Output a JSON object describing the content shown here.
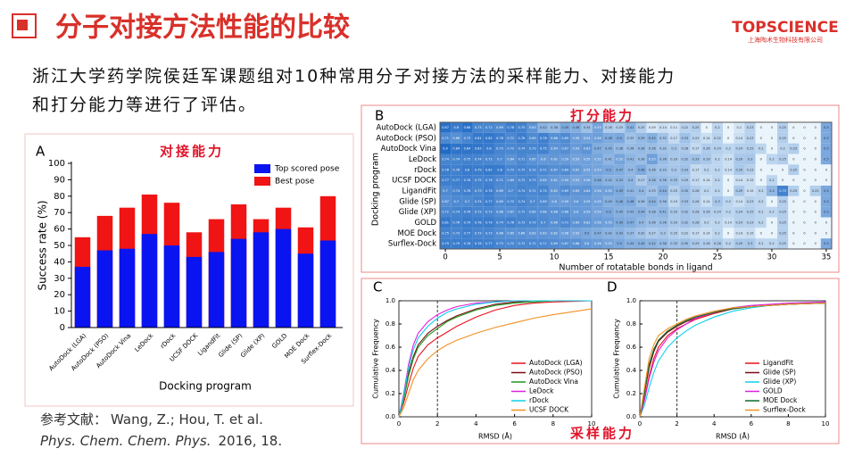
{
  "header": {
    "title": "分子对接方法性能的比较",
    "logo": "TOPSCIENCE",
    "logo_sub": "上海陶术生物科技有限公司"
  },
  "intro": [
    "浙江大学药学院侯廷军课题组对10种常用分子对接方法的采样能力、对接能力",
    "和打分能力等进行了评估。"
  ],
  "reference": {
    "prefix": "参考文献：",
    "authors": "Wang, Z.; Hou, T. et al.",
    "journal": "Phys. Chem. Chem. Phys.",
    "year": "2016, 18."
  },
  "chart_data": [
    {
      "type": "bar",
      "panel": "A",
      "title": "对接能力",
      "xlabel": "Docking program",
      "ylabel": "Success rate (%)",
      "categories": [
        "AutoDock (LGA)",
        "AutoDock (PSO)",
        "AutoDock Vina",
        "LeDock",
        "rDock",
        "UCSF DOCK",
        "LigandFit",
        "Glide (SP)",
        "Glide (XP)",
        "GOLD",
        "MOE Dock",
        "Surflex-Dock"
      ],
      "series": [
        {
          "name": "Top scored pose",
          "color": "#0a14f0",
          "values": [
            37,
            47,
            48,
            57,
            50,
            43,
            46,
            54,
            58,
            60,
            45,
            53
          ]
        },
        {
          "name": "Best pose",
          "color": "#f01414",
          "values": [
            55,
            68,
            73,
            81,
            76,
            58,
            66,
            75,
            66,
            73,
            61,
            80
          ]
        }
      ],
      "ylim": [
        0,
        100
      ],
      "yticks": [
        0,
        10,
        20,
        30,
        40,
        50,
        60,
        70,
        80,
        90,
        100
      ],
      "legend": "upper right"
    },
    {
      "type": "heatmap",
      "panel": "B",
      "title": "打分能力",
      "xlabel": "Number of rotatable bonds in ligand",
      "ylabel": "Docking program",
      "rows": [
        "AutoDock (LGA)",
        "AutoDock (PSO)",
        "AutoDock Vina",
        "LeDock",
        "rDock",
        "UCSF DOCK",
        "LigandFit",
        "Glide (SP)",
        "Glide (XP)",
        "GOLD",
        "MOE Dock",
        "Surflex-Dock"
      ],
      "x": [
        0,
        1,
        2,
        3,
        4,
        5,
        6,
        7,
        8,
        9,
        10,
        11,
        12,
        13,
        14,
        15,
        16,
        17,
        18,
        19,
        20,
        21,
        22,
        23,
        24,
        25,
        26,
        27,
        28,
        29,
        30,
        31,
        32,
        33,
        34,
        35
      ],
      "xlim": [
        -0.5,
        35.5
      ],
      "xticks": [
        0,
        5,
        10,
        15,
        20,
        25,
        30,
        35
      ],
      "colors": [
        "#eaf4fb",
        "#0b5cc0"
      ],
      "values": [
        [
          0.87,
          0.8,
          0.86,
          0.73,
          0.72,
          0.69,
          0.78,
          0.75,
          0.63,
          0.42,
          0.38,
          0.49,
          0.46,
          0.34,
          0.53,
          0.26,
          0.25,
          0.42,
          0.25,
          0.09,
          0.14,
          0.11,
          0.22,
          0.25,
          0,
          0.2,
          0,
          0.1,
          0.23,
          0,
          0,
          0.25,
          0,
          0,
          0,
          0.5
        ],
        [
          0.71,
          0.66,
          0.73,
          0.81,
          0.82,
          0.78,
          0.71,
          0.78,
          0.69,
          0.76,
          0.66,
          0.69,
          0.58,
          0.54,
          0.56,
          0.48,
          0.5,
          0.33,
          0.39,
          0.45,
          0.32,
          0.17,
          0.33,
          0.22,
          0.14,
          0.22,
          0,
          0.14,
          0.23,
          0,
          0,
          0.25,
          0,
          0,
          0,
          0.5
        ],
        [
          0.9,
          0.84,
          0.84,
          0.83,
          0.8,
          0.73,
          0.72,
          0.74,
          0.73,
          0.75,
          0.64,
          0.67,
          0.59,
          0.63,
          0.47,
          0.45,
          0.38,
          0.36,
          0.38,
          0.36,
          0.32,
          0.3,
          0.28,
          0.17,
          0.26,
          0.24,
          0.2,
          0.24,
          0.25,
          0.2,
          0,
          0.2,
          0.25,
          0,
          0,
          0.5
        ],
        [
          0.74,
          0.74,
          0.75,
          0.74,
          0.72,
          0.7,
          0.64,
          0.71,
          0.65,
          0.6,
          0.61,
          0.59,
          0.53,
          0.55,
          0.52,
          0.41,
          0.52,
          0.41,
          0.36,
          0.55,
          0.36,
          0.29,
          0.32,
          0.33,
          0.29,
          0.2,
          0.14,
          0.29,
          0.3,
          0,
          0.2,
          0.25,
          0,
          0,
          0,
          0.5
        ],
        [
          0.78,
          0.76,
          0.8,
          0.79,
          0.81,
          0.8,
          0.73,
          0.75,
          0.72,
          0.71,
          0.67,
          0.69,
          0.61,
          0.55,
          0.53,
          0.5,
          0.47,
          0.4,
          0.48,
          0.36,
          0.33,
          0.3,
          0.33,
          0.17,
          0.2,
          0.2,
          0.14,
          0.29,
          0.23,
          0,
          0,
          0,
          0.25,
          0,
          0,
          0
        ],
        [
          0.77,
          0.77,
          0.78,
          0.75,
          0.76,
          0.71,
          0.69,
          0.72,
          0.73,
          0.65,
          0.61,
          0.59,
          0.53,
          0.56,
          0.48,
          0.42,
          0.43,
          0.4,
          0.27,
          0.38,
          0.36,
          0.33,
          0.29,
          0.17,
          0.14,
          0.2,
          0,
          0.14,
          0.15,
          0,
          0.2,
          0,
          0,
          0,
          0,
          0
        ],
        [
          0.7,
          0.74,
          0.76,
          0.73,
          0.78,
          0.69,
          0.7,
          0.74,
          0.71,
          0.74,
          0.62,
          0.69,
          0.63,
          0.64,
          0.56,
          0.55,
          0.49,
          0.41,
          0.4,
          0.33,
          0.44,
          0.25,
          0.35,
          0.26,
          0.2,
          0.2,
          0,
          0.29,
          0.15,
          0.2,
          0.4,
          0.75,
          0.25,
          0,
          0.25,
          0.5
        ],
        [
          0.67,
          0.7,
          0.7,
          0.74,
          0.77,
          0.69,
          0.72,
          0.74,
          0.7,
          0.69,
          0.6,
          0.59,
          0.6,
          0.59,
          0.55,
          0.45,
          0.48,
          0.48,
          0.36,
          0.44,
          0.36,
          0.19,
          0.33,
          0.26,
          0.14,
          0.3,
          0.2,
          0.14,
          0.23,
          0.2,
          0,
          0.25,
          0,
          0,
          0,
          0.5
        ],
        [
          0.72,
          0.74,
          0.76,
          0.73,
          0.73,
          0.68,
          0.67,
          0.72,
          0.69,
          0.68,
          0.66,
          0.66,
          0.6,
          0.59,
          0.54,
          0.5,
          0.45,
          0.43,
          0.44,
          0.38,
          0.41,
          0.29,
          0.32,
          0.28,
          0.26,
          0.24,
          0.2,
          0.24,
          0.25,
          0.2,
          0.2,
          0.25,
          0,
          0,
          0,
          0.5
        ],
        [
          0.81,
          0.76,
          0.79,
          0.78,
          0.79,
          0.74,
          0.76,
          0.73,
          0.73,
          0.7,
          0.66,
          0.71,
          0.64,
          0.62,
          0.58,
          0.55,
          0.49,
          0.47,
          0.4,
          0.36,
          0.36,
          0.29,
          0.32,
          0.28,
          0.2,
          0.2,
          0.14,
          0.24,
          0.23,
          0.2,
          0,
          0.25,
          0,
          0,
          0,
          0
        ],
        [
          0.75,
          0.73,
          0.77,
          0.73,
          0.73,
          0.68,
          0.65,
          0.66,
          0.63,
          0.63,
          0.62,
          0.58,
          0.53,
          0.5,
          0.47,
          0.42,
          0.43,
          0.37,
          0.32,
          0.27,
          0.3,
          0.25,
          0.22,
          0.17,
          0.14,
          0.2,
          0,
          0.14,
          0.15,
          0,
          0,
          0.25,
          0,
          0,
          0,
          0
        ],
        [
          0.79,
          0.79,
          0.78,
          0.78,
          0.77,
          0.73,
          0.72,
          0.72,
          0.72,
          0.71,
          0.69,
          0.67,
          0.66,
          0.6,
          0.58,
          0.53,
          0.5,
          0.44,
          0.45,
          0.42,
          0.38,
          0.33,
          0.35,
          0.29,
          0.26,
          0.28,
          0.2,
          0.29,
          0.3,
          0.2,
          0.2,
          0.25,
          0,
          0,
          0,
          0.5
        ]
      ]
    },
    {
      "type": "line",
      "panel": "C",
      "title": "采样能力",
      "xlabel": "RMSD (Å)",
      "ylabel": "Cumulative Frequency",
      "x": [
        0,
        0.25,
        0.5,
        0.75,
        1,
        1.5,
        2,
        2.5,
        3,
        4,
        5,
        6,
        7,
        8,
        10
      ],
      "xlim": [
        0,
        10
      ],
      "xticks": [
        0,
        2,
        4,
        6,
        8,
        10
      ],
      "ylim": [
        0,
        1
      ],
      "yticks": [
        {
          "value": 0,
          "label": "0.0"
        },
        0.2,
        0.4,
        0.6,
        0.8,
        {
          "value": 1,
          "label": "1.0"
        }
      ],
      "vline": 2,
      "legend": "lower right",
      "series": [
        {
          "name": "AutoDock (LGA)",
          "color": "#e8101e",
          "values": [
            0,
            0.12,
            0.28,
            0.42,
            0.52,
            0.62,
            0.68,
            0.73,
            0.78,
            0.86,
            0.92,
            0.96,
            0.98,
            0.99,
            1
          ]
        },
        {
          "name": "AutoDock (PSO)",
          "color": "#7a0a14",
          "values": [
            0,
            0.18,
            0.38,
            0.52,
            0.62,
            0.72,
            0.78,
            0.83,
            0.87,
            0.93,
            0.97,
            0.99,
            1,
            1,
            1
          ]
        },
        {
          "name": "AutoDock Vina",
          "color": "#1a9a1a",
          "values": [
            0,
            0.15,
            0.35,
            0.5,
            0.6,
            0.7,
            0.76,
            0.82,
            0.86,
            0.92,
            0.96,
            0.98,
            0.99,
            1,
            1
          ]
        },
        {
          "name": "LeDock",
          "color": "#e020e0",
          "values": [
            0,
            0.2,
            0.45,
            0.62,
            0.72,
            0.82,
            0.88,
            0.92,
            0.95,
            0.98,
            0.99,
            1,
            1,
            1,
            1
          ]
        },
        {
          "name": "rDock",
          "color": "#10d0e8",
          "values": [
            0,
            0.18,
            0.42,
            0.58,
            0.68,
            0.78,
            0.85,
            0.9,
            0.93,
            0.97,
            0.99,
            1,
            1,
            1,
            1
          ]
        },
        {
          "name": "UCSF DOCK",
          "color": "#f09020",
          "values": [
            0,
            0.08,
            0.2,
            0.32,
            0.4,
            0.5,
            0.57,
            0.62,
            0.66,
            0.72,
            0.77,
            0.81,
            0.85,
            0.88,
            0.93
          ]
        }
      ]
    },
    {
      "type": "line",
      "panel": "D",
      "xlabel": "RMSD (Å)",
      "ylabel": "Cumulative Frequency",
      "x": [
        0,
        0.25,
        0.5,
        0.75,
        1,
        1.5,
        2,
        2.5,
        3,
        4,
        5,
        6,
        7,
        8,
        10
      ],
      "xlim": [
        0,
        10
      ],
      "xticks": [
        0,
        2,
        4,
        6,
        8,
        10
      ],
      "ylim": [
        0,
        1
      ],
      "yticks": [
        {
          "value": 0,
          "label": "0.0"
        },
        0.2,
        0.4,
        0.6,
        0.8,
        {
          "value": 1,
          "label": "1.0"
        }
      ],
      "vline": 2,
      "legend": "lower right",
      "series": [
        {
          "name": "LigandFit",
          "color": "#e8101e",
          "values": [
            0,
            0.15,
            0.35,
            0.5,
            0.6,
            0.7,
            0.76,
            0.8,
            0.84,
            0.89,
            0.93,
            0.95,
            0.96,
            0.97,
            0.98
          ]
        },
        {
          "name": "Glide (SP)",
          "color": "#7a0a14",
          "values": [
            0,
            0.2,
            0.42,
            0.56,
            0.65,
            0.73,
            0.78,
            0.82,
            0.85,
            0.9,
            0.93,
            0.95,
            0.96,
            0.97,
            0.98
          ]
        },
        {
          "name": "Glide (XP)",
          "color": "#10d0e8",
          "values": [
            0,
            0.1,
            0.25,
            0.38,
            0.48,
            0.6,
            0.68,
            0.74,
            0.79,
            0.86,
            0.91,
            0.94,
            0.96,
            0.97,
            0.99
          ]
        },
        {
          "name": "GOLD",
          "color": "#e020e0",
          "values": [
            0,
            0.14,
            0.33,
            0.47,
            0.57,
            0.68,
            0.75,
            0.8,
            0.85,
            0.9,
            0.94,
            0.96,
            0.97,
            0.98,
            0.99
          ]
        },
        {
          "name": "MOE Dock",
          "color": "#0a6a2a",
          "values": [
            0,
            0.2,
            0.45,
            0.58,
            0.66,
            0.74,
            0.79,
            0.83,
            0.86,
            0.9,
            0.93,
            0.95,
            0.96,
            0.97,
            0.98
          ]
        },
        {
          "name": "Surflex-Dock",
          "color": "#f09020",
          "values": [
            0,
            0.25,
            0.5,
            0.62,
            0.7,
            0.76,
            0.8,
            0.84,
            0.87,
            0.91,
            0.94,
            0.95,
            0.96,
            0.97,
            0.98
          ]
        }
      ]
    }
  ]
}
